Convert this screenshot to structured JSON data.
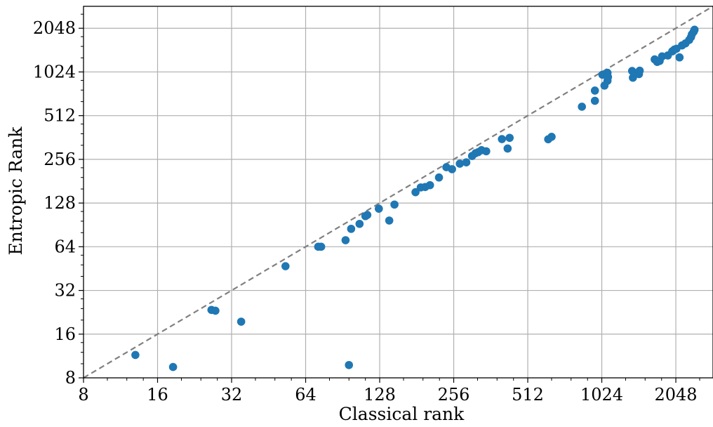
{
  "chart_data": {
    "type": "scatter",
    "title": "",
    "xlabel": "Classical rank",
    "ylabel": "Entropic Rank",
    "x_scale": "log2",
    "y_scale": "log2",
    "xlim": [
      8,
      2900
    ],
    "ylim": [
      8,
      2900
    ],
    "xticks": [
      8,
      16,
      32,
      64,
      128,
      256,
      512,
      1024,
      2048
    ],
    "yticks": [
      8,
      16,
      32,
      64,
      128,
      256,
      512,
      1024,
      2048
    ],
    "xtick_labels": [
      "8",
      "16",
      "32",
      "64",
      "128",
      "256",
      "512",
      "1024",
      "2048"
    ],
    "ytick_labels": [
      "8",
      "16",
      "32",
      "64",
      "128",
      "256",
      "512",
      "1024",
      "2048"
    ],
    "grid": true,
    "reference_line": "y = x",
    "colors": {
      "points": "#1f77b4",
      "reference_line": "#808080",
      "grid": "#b0b0b0",
      "axes": "#000000"
    },
    "series": [
      {
        "points": [
          [
            13,
            11.5
          ],
          [
            18.5,
            9.5
          ],
          [
            26.5,
            23.5
          ],
          [
            27.5,
            23.2
          ],
          [
            35,
            19.5
          ],
          [
            53,
            47
          ],
          [
            72,
            64
          ],
          [
            74,
            64
          ],
          [
            93,
            71
          ],
          [
            96,
            9.8
          ],
          [
            98,
            85
          ],
          [
            106,
            92
          ],
          [
            112,
            104
          ],
          [
            114,
            106
          ],
          [
            127,
            117
          ],
          [
            140,
            97
          ],
          [
            147,
            125
          ],
          [
            179,
            152
          ],
          [
            188,
            164
          ],
          [
            196,
            165
          ],
          [
            205,
            170
          ],
          [
            223,
            192
          ],
          [
            239,
            226
          ],
          [
            252,
            219
          ],
          [
            271,
            239
          ],
          [
            288,
            244
          ],
          [
            304,
            270
          ],
          [
            314,
            282
          ],
          [
            322,
            287
          ],
          [
            332,
            296
          ],
          [
            347,
            291
          ],
          [
            402,
            353
          ],
          [
            424,
            304
          ],
          [
            432,
            360
          ],
          [
            620,
            352
          ],
          [
            640,
            366
          ],
          [
            850,
            590
          ],
          [
            960,
            648
          ],
          [
            960,
            762
          ],
          [
            1050,
            825
          ],
          [
            1030,
            980
          ],
          [
            1080,
            1010
          ],
          [
            1080,
            890
          ],
          [
            1085,
            945
          ],
          [
            1370,
            935
          ],
          [
            1360,
            1040
          ],
          [
            1450,
            990
          ],
          [
            1460,
            1045
          ],
          [
            1680,
            1250
          ],
          [
            1720,
            1200
          ],
          [
            1760,
            1220
          ],
          [
            1800,
            1310
          ],
          [
            1900,
            1330
          ],
          [
            1980,
            1420
          ],
          [
            2020,
            1460
          ],
          [
            2060,
            1480
          ],
          [
            2120,
            1290
          ],
          [
            2170,
            1560
          ],
          [
            2240,
            1610
          ],
          [
            2320,
            1700
          ],
          [
            2360,
            1780
          ],
          [
            2380,
            1860
          ],
          [
            2420,
            1940
          ],
          [
            2440,
            2000
          ]
        ]
      }
    ]
  }
}
